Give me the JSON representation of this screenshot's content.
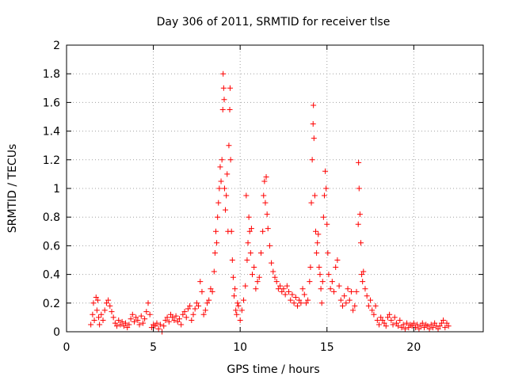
{
  "chart_data": {
    "type": "scatter",
    "title": "Day 306 of 2011, SRMTID for receiver tlse",
    "xlabel": "GPS time / hours",
    "ylabel": "SRMTID / TECUs",
    "xlim": [
      0,
      24
    ],
    "ylim": [
      0,
      2
    ],
    "xticks": [
      0,
      5,
      10,
      15,
      20
    ],
    "yticks": [
      0,
      0.2,
      0.4,
      0.6,
      0.8,
      1,
      1.2,
      1.4,
      1.6,
      1.8,
      2
    ],
    "xtick_labels": [
      "0",
      "5",
      "10",
      "15",
      "20"
    ],
    "ytick_labels": [
      "0",
      "0.2",
      "0.4",
      "0.6",
      "0.8",
      "1",
      "1.2",
      "1.4",
      "1.6",
      "1.8",
      "2"
    ],
    "grid": true,
    "marker": "+",
    "color": "#ff0000",
    "series": [
      {
        "name": "SRMTID",
        "points": [
          [
            1.4,
            0.05
          ],
          [
            1.5,
            0.12
          ],
          [
            1.55,
            0.2
          ],
          [
            1.6,
            0.08
          ],
          [
            1.7,
            0.24
          ],
          [
            1.75,
            0.15
          ],
          [
            1.8,
            0.22
          ],
          [
            1.85,
            0.1
          ],
          [
            1.9,
            0.05
          ],
          [
            2.0,
            0.12
          ],
          [
            2.1,
            0.08
          ],
          [
            2.2,
            0.15
          ],
          [
            2.3,
            0.2
          ],
          [
            2.4,
            0.22
          ],
          [
            2.5,
            0.18
          ],
          [
            2.6,
            0.14
          ],
          [
            2.7,
            0.1
          ],
          [
            2.8,
            0.06
          ],
          [
            2.9,
            0.04
          ],
          [
            3.0,
            0.08
          ],
          [
            3.1,
            0.05
          ],
          [
            3.2,
            0.07
          ],
          [
            3.3,
            0.04
          ],
          [
            3.4,
            0.06
          ],
          [
            3.5,
            0.03
          ],
          [
            3.6,
            0.05
          ],
          [
            3.7,
            0.09
          ],
          [
            3.8,
            0.12
          ],
          [
            3.9,
            0.07
          ],
          [
            4.0,
            0.1
          ],
          [
            4.1,
            0.08
          ],
          [
            4.2,
            0.05
          ],
          [
            4.3,
            0.11
          ],
          [
            4.4,
            0.06
          ],
          [
            4.5,
            0.09
          ],
          [
            4.6,
            0.14
          ],
          [
            4.7,
            0.2
          ],
          [
            4.8,
            0.12
          ],
          [
            4.9,
            0.03
          ],
          [
            5.0,
            0.05
          ],
          [
            5.1,
            0.04
          ],
          [
            5.2,
            0.06
          ],
          [
            5.3,
            0.02
          ],
          [
            5.4,
            0.05
          ],
          [
            5.5,
            0.0
          ],
          [
            5.6,
            0.04
          ],
          [
            5.7,
            0.08
          ],
          [
            5.8,
            0.1
          ],
          [
            5.9,
            0.07
          ],
          [
            6.0,
            0.12
          ],
          [
            6.1,
            0.1
          ],
          [
            6.2,
            0.08
          ],
          [
            6.3,
            0.11
          ],
          [
            6.4,
            0.07
          ],
          [
            6.5,
            0.09
          ],
          [
            6.6,
            0.05
          ],
          [
            6.7,
            0.12
          ],
          [
            6.8,
            0.14
          ],
          [
            6.9,
            0.1
          ],
          [
            7.0,
            0.16
          ],
          [
            7.1,
            0.18
          ],
          [
            7.2,
            0.08
          ],
          [
            7.3,
            0.12
          ],
          [
            7.4,
            0.16
          ],
          [
            7.5,
            0.2
          ],
          [
            7.6,
            0.18
          ],
          [
            7.7,
            0.35
          ],
          [
            7.8,
            0.28
          ],
          [
            7.9,
            0.12
          ],
          [
            8.0,
            0.15
          ],
          [
            8.1,
            0.2
          ],
          [
            8.2,
            0.22
          ],
          [
            8.3,
            0.3
          ],
          [
            8.4,
            0.28
          ],
          [
            8.5,
            0.42
          ],
          [
            8.55,
            0.55
          ],
          [
            8.6,
            0.7
          ],
          [
            8.65,
            0.62
          ],
          [
            8.7,
            0.8
          ],
          [
            8.75,
            0.9
          ],
          [
            8.8,
            1.0
          ],
          [
            8.85,
            1.15
          ],
          [
            8.9,
            1.05
          ],
          [
            8.95,
            1.2
          ],
          [
            9.0,
            1.55
          ],
          [
            9.02,
            1.8
          ],
          [
            9.05,
            1.7
          ],
          [
            9.08,
            1.62
          ],
          [
            9.1,
            1.0
          ],
          [
            9.15,
            0.85
          ],
          [
            9.2,
            0.95
          ],
          [
            9.25,
            1.1
          ],
          [
            9.3,
            0.7
          ],
          [
            9.35,
            1.3
          ],
          [
            9.4,
            1.55
          ],
          [
            9.42,
            1.7
          ],
          [
            9.45,
            1.2
          ],
          [
            9.5,
            0.7
          ],
          [
            9.55,
            0.5
          ],
          [
            9.6,
            0.38
          ],
          [
            9.65,
            0.25
          ],
          [
            9.7,
            0.3
          ],
          [
            9.75,
            0.15
          ],
          [
            9.8,
            0.12
          ],
          [
            9.85,
            0.2
          ],
          [
            9.9,
            0.18
          ],
          [
            10.0,
            0.08
          ],
          [
            10.1,
            0.15
          ],
          [
            10.2,
            0.22
          ],
          [
            10.3,
            0.32
          ],
          [
            10.35,
            0.95
          ],
          [
            10.4,
            0.5
          ],
          [
            10.45,
            0.62
          ],
          [
            10.5,
            0.8
          ],
          [
            10.55,
            0.7
          ],
          [
            10.6,
            0.55
          ],
          [
            10.65,
            0.72
          ],
          [
            10.7,
            0.4
          ],
          [
            10.8,
            0.45
          ],
          [
            10.9,
            0.3
          ],
          [
            11.0,
            0.35
          ],
          [
            11.1,
            0.38
          ],
          [
            11.2,
            0.55
          ],
          [
            11.3,
            0.7
          ],
          [
            11.35,
            0.95
          ],
          [
            11.4,
            1.05
          ],
          [
            11.45,
            0.9
          ],
          [
            11.5,
            1.08
          ],
          [
            11.55,
            0.82
          ],
          [
            11.6,
            0.72
          ],
          [
            11.7,
            0.6
          ],
          [
            11.8,
            0.48
          ],
          [
            11.9,
            0.42
          ],
          [
            12.0,
            0.38
          ],
          [
            12.1,
            0.35
          ],
          [
            12.2,
            0.3
          ],
          [
            12.3,
            0.32
          ],
          [
            12.4,
            0.28
          ],
          [
            12.5,
            0.3
          ],
          [
            12.6,
            0.26
          ],
          [
            12.7,
            0.32
          ],
          [
            12.8,
            0.28
          ],
          [
            12.9,
            0.22
          ],
          [
            13.0,
            0.26
          ],
          [
            13.1,
            0.2
          ],
          [
            13.2,
            0.24
          ],
          [
            13.3,
            0.18
          ],
          [
            13.4,
            0.22
          ],
          [
            13.5,
            0.2
          ],
          [
            13.6,
            0.3
          ],
          [
            13.7,
            0.26
          ],
          [
            13.8,
            0.2
          ],
          [
            13.9,
            0.22
          ],
          [
            14.0,
            0.35
          ],
          [
            14.05,
            0.45
          ],
          [
            14.1,
            0.9
          ],
          [
            14.15,
            1.2
          ],
          [
            14.2,
            1.45
          ],
          [
            14.22,
            1.58
          ],
          [
            14.25,
            1.35
          ],
          [
            14.3,
            0.95
          ],
          [
            14.35,
            0.7
          ],
          [
            14.4,
            0.55
          ],
          [
            14.45,
            0.62
          ],
          [
            14.5,
            0.68
          ],
          [
            14.55,
            0.45
          ],
          [
            14.6,
            0.4
          ],
          [
            14.65,
            0.3
          ],
          [
            14.7,
            0.2
          ],
          [
            14.75,
            0.35
          ],
          [
            14.8,
            0.8
          ],
          [
            14.85,
            0.95
          ],
          [
            14.9,
            1.12
          ],
          [
            14.95,
            1.0
          ],
          [
            15.0,
            0.75
          ],
          [
            15.05,
            0.55
          ],
          [
            15.1,
            0.4
          ],
          [
            15.2,
            0.3
          ],
          [
            15.3,
            0.35
          ],
          [
            15.4,
            0.28
          ],
          [
            15.5,
            0.45
          ],
          [
            15.6,
            0.5
          ],
          [
            15.7,
            0.32
          ],
          [
            15.8,
            0.22
          ],
          [
            15.9,
            0.18
          ],
          [
            16.0,
            0.25
          ],
          [
            16.1,
            0.2
          ],
          [
            16.2,
            0.3
          ],
          [
            16.3,
            0.22
          ],
          [
            16.4,
            0.28
          ],
          [
            16.5,
            0.15
          ],
          [
            16.6,
            0.18
          ],
          [
            16.7,
            0.28
          ],
          [
            16.8,
            0.75
          ],
          [
            16.82,
            1.18
          ],
          [
            16.85,
            1.0
          ],
          [
            16.9,
            0.82
          ],
          [
            16.95,
            0.62
          ],
          [
            17.0,
            0.4
          ],
          [
            17.05,
            0.35
          ],
          [
            17.1,
            0.42
          ],
          [
            17.2,
            0.3
          ],
          [
            17.3,
            0.25
          ],
          [
            17.4,
            0.18
          ],
          [
            17.5,
            0.22
          ],
          [
            17.6,
            0.15
          ],
          [
            17.7,
            0.12
          ],
          [
            17.8,
            0.18
          ],
          [
            17.9,
            0.08
          ],
          [
            18.0,
            0.05
          ],
          [
            18.1,
            0.1
          ],
          [
            18.2,
            0.08
          ],
          [
            18.3,
            0.06
          ],
          [
            18.4,
            0.04
          ],
          [
            18.5,
            0.1
          ],
          [
            18.6,
            0.12
          ],
          [
            18.7,
            0.08
          ],
          [
            18.8,
            0.05
          ],
          [
            18.9,
            0.1
          ],
          [
            19.0,
            0.06
          ],
          [
            19.1,
            0.04
          ],
          [
            19.2,
            0.08
          ],
          [
            19.3,
            0.03
          ],
          [
            19.4,
            0.05
          ],
          [
            19.5,
            0.02
          ],
          [
            19.6,
            0.06
          ],
          [
            19.7,
            0.03
          ],
          [
            19.8,
            0.05
          ],
          [
            19.9,
            0.04
          ],
          [
            20.0,
            0.06
          ],
          [
            20.1,
            0.03
          ],
          [
            20.2,
            0.05
          ],
          [
            20.3,
            0.02
          ],
          [
            20.4,
            0.04
          ],
          [
            20.5,
            0.06
          ],
          [
            20.6,
            0.03
          ],
          [
            20.7,
            0.05
          ],
          [
            20.8,
            0.04
          ],
          [
            20.9,
            0.02
          ],
          [
            21.0,
            0.05
          ],
          [
            21.1,
            0.03
          ],
          [
            21.2,
            0.06
          ],
          [
            21.3,
            0.04
          ],
          [
            21.4,
            0.02
          ],
          [
            21.5,
            0.04
          ],
          [
            21.6,
            0.06
          ],
          [
            21.7,
            0.08
          ],
          [
            21.8,
            0.03
          ],
          [
            21.9,
            0.06
          ],
          [
            22.0,
            0.04
          ]
        ]
      }
    ]
  }
}
